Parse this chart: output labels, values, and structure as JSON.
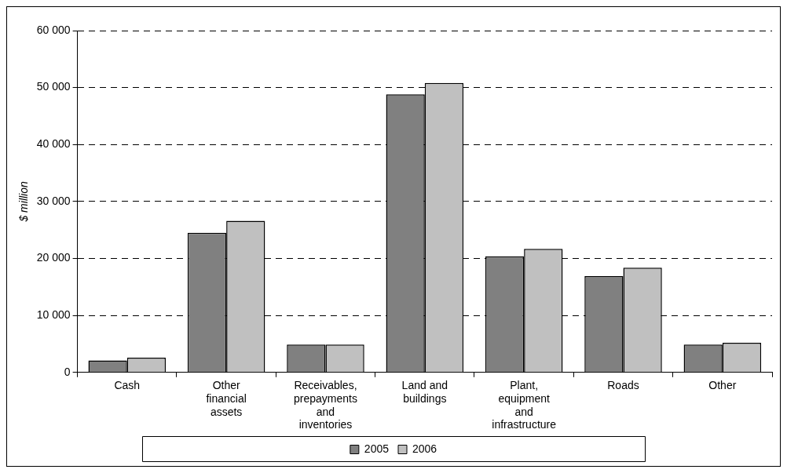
{
  "chart_data": {
    "type": "bar",
    "ylabel": "$ million",
    "categories": [
      "Cash",
      "Other financial assets",
      "Receivables, prepayments and inventories",
      "Land and buildings",
      "Plant, equipment and infrastructure",
      "Roads",
      "Other"
    ],
    "series": [
      {
        "name": "2005",
        "color": "#808080",
        "values": [
          2100,
          24500,
          4900,
          48800,
          20400,
          16900,
          4900
        ]
      },
      {
        "name": "2006",
        "color": "#c0c0c0",
        "values": [
          2600,
          26600,
          4900,
          50800,
          21700,
          18400,
          5200
        ]
      }
    ],
    "ylim": [
      0,
      60000
    ],
    "yticks": [
      {
        "value": 0,
        "label": "0"
      },
      {
        "value": 10000,
        "label": "10 000"
      },
      {
        "value": 20000,
        "label": "20 000"
      },
      {
        "value": 30000,
        "label": "30 000"
      },
      {
        "value": 40000,
        "label": "40 000"
      },
      {
        "value": 50000,
        "label": "50 000"
      },
      {
        "value": 60000,
        "label": "60 000"
      }
    ],
    "grid": "y",
    "legend": "bottom"
  }
}
